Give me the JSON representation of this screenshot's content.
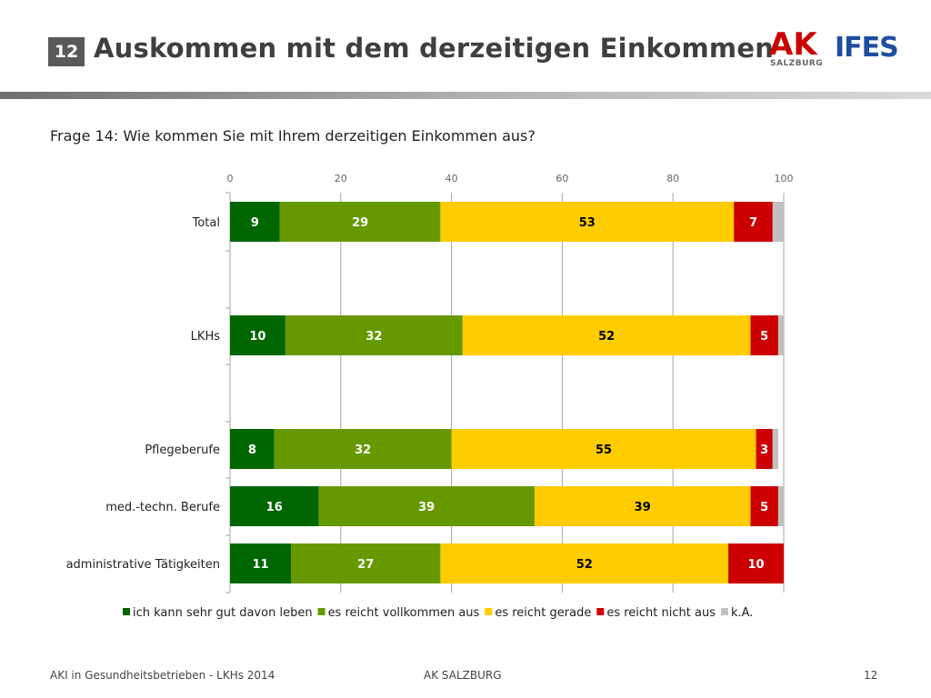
{
  "header": {
    "slide_number": "12",
    "title": "Auskommen mit dem derzeitigen Einkommen",
    "logo_ak_text": "AK",
    "logo_ak_sub": "SALZBURG",
    "logo_ifes_text": "IFES"
  },
  "question": "Frage 14: Wie kommen Sie mit Ihrem derzeitigen Einkommen aus?",
  "colors": {
    "sehr_gut": "#006600",
    "vollkommen": "#669900",
    "gerade": "#ffcc00",
    "nicht": "#cc0000",
    "ka": "#c0c0c0",
    "grid": "#a6a6a6"
  },
  "chart_data": {
    "type": "bar",
    "orientation": "horizontal",
    "stacked": true,
    "xlim": [
      0,
      100
    ],
    "x_ticks": [
      "0",
      "20",
      "40",
      "60",
      "80",
      "100"
    ],
    "categories": [
      "Total",
      "LKHs",
      "Pflegeberufe",
      "med.-techn. Berufe",
      "administrative Tätigkeiten"
    ],
    "series": [
      {
        "name": "ich kann sehr gut davon leben",
        "color": "#006600",
        "label_color": "#ffffff",
        "values": [
          9,
          10,
          8,
          16,
          11
        ]
      },
      {
        "name": "es reicht vollkommen aus",
        "color": "#669900",
        "label_color": "#ffffff",
        "values": [
          29,
          32,
          32,
          39,
          27
        ]
      },
      {
        "name": "es reicht gerade",
        "color": "#ffcc00",
        "label_color": "#000000",
        "values": [
          53,
          52,
          55,
          39,
          52
        ]
      },
      {
        "name": "es reicht nicht aus",
        "color": "#cc0000",
        "label_color": "#ffffff",
        "values": [
          7,
          5,
          3,
          5,
          10
        ]
      },
      {
        "name": "k.A.",
        "color": "#c0c0c0",
        "label_color": "#000000",
        "values": [
          2,
          1,
          1,
          1,
          0
        ]
      }
    ],
    "data_labels": [
      [
        "9",
        "29",
        "53",
        "7",
        ""
      ],
      [
        "10",
        "32",
        "52",
        "5",
        ""
      ],
      [
        "8",
        "32",
        "55",
        "3",
        ""
      ],
      [
        "16",
        "39",
        "39",
        "5",
        ""
      ],
      [
        "11",
        "27",
        "52",
        "10",
        ""
      ]
    ],
    "legend_position": "bottom",
    "grid": true
  },
  "footer": {
    "left": "AKI in Gesundheitsbetrieben - LKHs 2014",
    "center": "AK SALZBURG",
    "right": "12"
  }
}
